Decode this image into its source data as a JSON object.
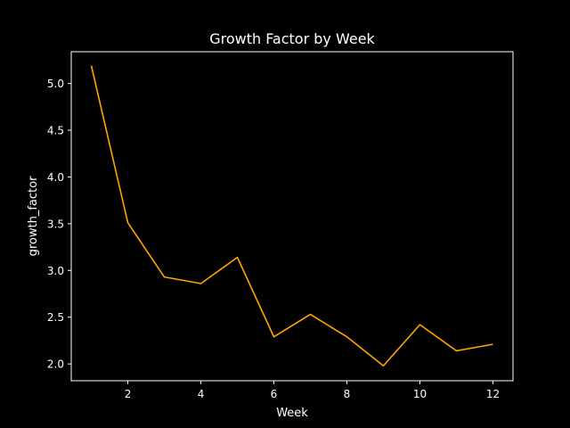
{
  "chart_data": {
    "type": "line",
    "title": "Growth Factor by Week",
    "xlabel": "Week",
    "ylabel": "growth_factor",
    "x": [
      1,
      2,
      3,
      4,
      5,
      6,
      7,
      8,
      9,
      10,
      11,
      12
    ],
    "series": [
      {
        "values": [
          5.19,
          3.51,
          2.93,
          2.86,
          3.14,
          2.29,
          2.53,
          2.29,
          1.98,
          2.42,
          2.14,
          2.21
        ],
        "color": "#ffa500"
      }
    ],
    "xlim": [
      0.45,
      12.55
    ],
    "ylim": [
      1.82,
      5.34
    ],
    "xticks": [
      2,
      4,
      6,
      8,
      10,
      12
    ],
    "yticks": [
      2.0,
      2.5,
      3.0,
      3.5,
      4.0,
      4.5,
      5.0
    ],
    "ytick_labels": [
      "2.0",
      "2.5",
      "3.0",
      "3.5",
      "4.0",
      "4.5",
      "5.0"
    ],
    "grid": false,
    "background": "#000000",
    "foreground": "#ffffff"
  }
}
